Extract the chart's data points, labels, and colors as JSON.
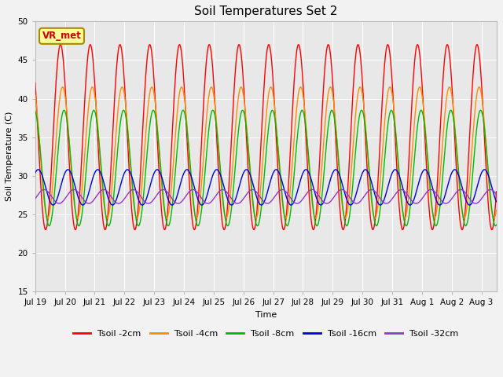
{
  "title": "Soil Temperatures Set 2",
  "xlabel": "Time",
  "ylabel": "Soil Temperature (C)",
  "ylim": [
    15,
    50
  ],
  "annotation": "VR_met",
  "x_tick_labels": [
    "Jul 19",
    "Jul 20",
    "Jul 21",
    "Jul 22",
    "Jul 23",
    "Jul 24",
    "Jul 25",
    "Jul 26",
    "Jul 27",
    "Jul 28",
    "Jul 29",
    "Jul 30",
    "Jul 31",
    "Aug 1",
    "Aug 2",
    "Aug 3"
  ],
  "series": [
    {
      "name": "Tsoil -2cm",
      "color": "#FF0000",
      "amplitude": 12.0,
      "mean": 35.0,
      "phase": 0.6
    },
    {
      "name": "Tsoil -4cm",
      "color": "#FF8C00",
      "amplitude": 8.5,
      "mean": 33.0,
      "phase": 0.67
    },
    {
      "name": "Tsoil -8cm",
      "color": "#00BB00",
      "amplitude": 7.5,
      "mean": 31.0,
      "phase": 0.72
    },
    {
      "name": "Tsoil -16cm",
      "color": "#0000DD",
      "amplitude": 2.3,
      "mean": 28.5,
      "phase": 0.85
    },
    {
      "name": "Tsoil -32cm",
      "color": "#9933CC",
      "amplitude": 0.9,
      "mean": 27.3,
      "phase": 1.05
    }
  ],
  "bg_color": "#F2F2F2",
  "plot_bg": "#E8E8E8",
  "grid_color": "#FFFFFF",
  "title_fontsize": 11,
  "label_fontsize": 8,
  "tick_fontsize": 7.5,
  "n_days": 15.5,
  "mean_trend": 0.0
}
